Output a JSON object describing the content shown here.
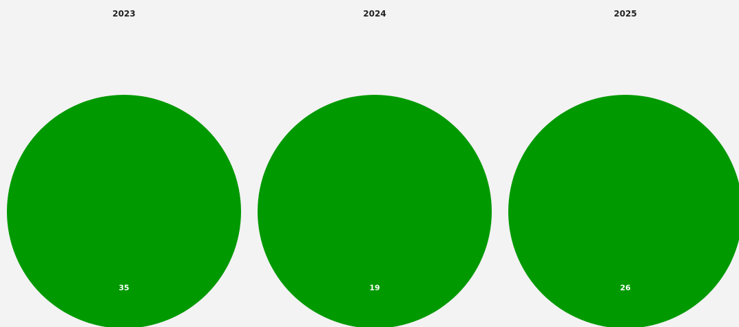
{
  "chart_data": [
    {
      "type": "pie",
      "title": "2023",
      "categories": [
        "",
        ""
      ],
      "values": [
        0,
        35
      ],
      "colors": [
        "#e8302c",
        "#009900"
      ],
      "donut": true
    },
    {
      "type": "pie",
      "title": "2024",
      "categories": [
        "",
        ""
      ],
      "values": [
        0,
        19
      ],
      "colors": [
        "#e8302c",
        "#009900"
      ],
      "donut": true
    },
    {
      "type": "pie",
      "title": "2025",
      "categories": [
        "",
        ""
      ],
      "values": [
        0,
        26
      ],
      "colors": [
        "#e8302c",
        "#009900"
      ],
      "donut": true
    }
  ],
  "colors": {
    "background": "#f3f3f3",
    "hole": "#ffffff",
    "label_text": "#ffffff"
  }
}
